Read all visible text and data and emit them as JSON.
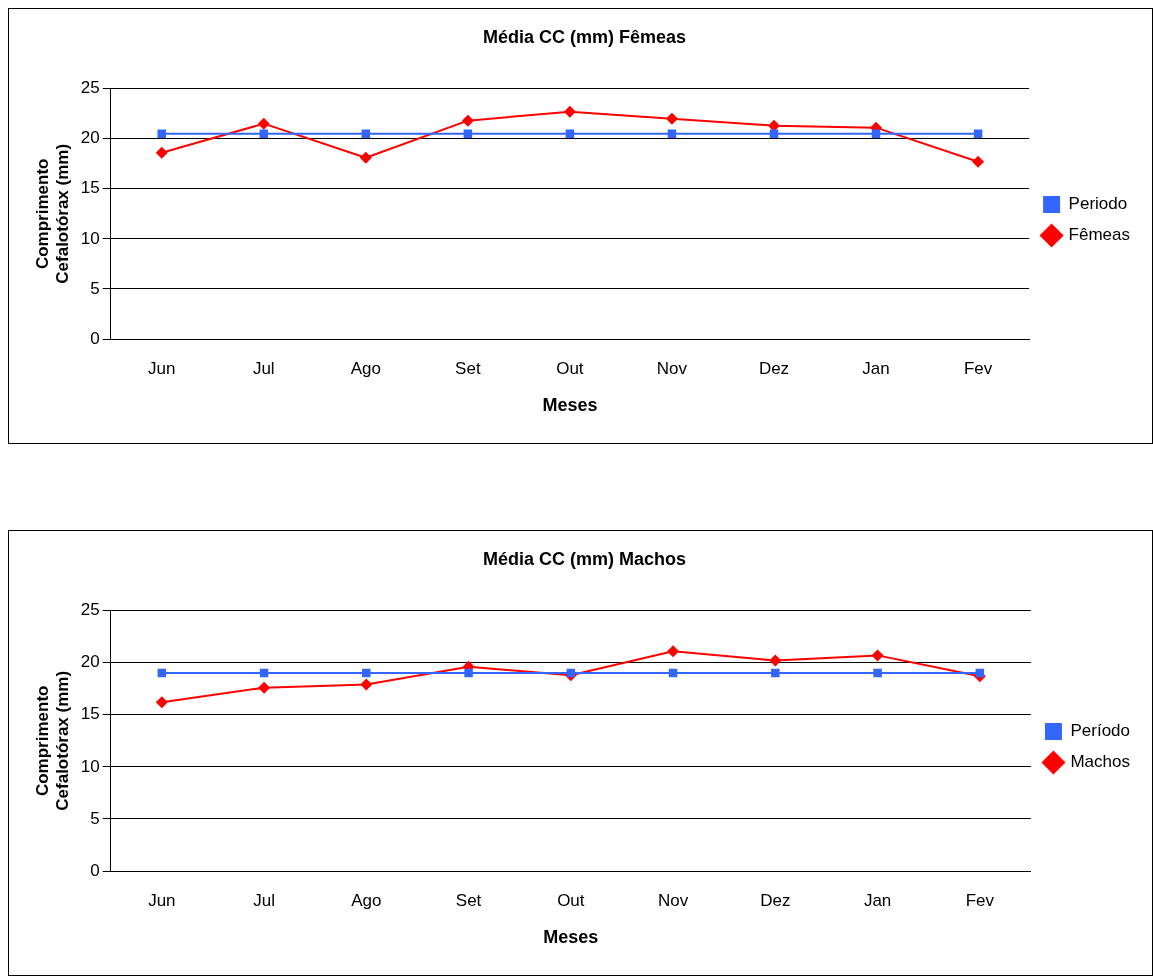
{
  "chart_data": [
    {
      "type": "line",
      "title": "Média CC (mm) Fêmeas",
      "xlabel": "Meses",
      "ylabel": "Comprimento Cefalotórax (mm)",
      "categories": [
        "Jun",
        "Jul",
        "Ago",
        "Set",
        "Out",
        "Nov",
        "Dez",
        "Jan",
        "Fev"
      ],
      "series": [
        {
          "name": "Fêmeas",
          "color": "#ff0000",
          "marker": "diamond",
          "values": [
            18.6,
            21.5,
            18.1,
            21.8,
            22.7,
            22.0,
            21.3,
            21.1,
            17.7
          ]
        },
        {
          "name": "Periodo",
          "color": "#3366ff",
          "marker": "square",
          "values": [
            20.5,
            20.5,
            20.5,
            20.5,
            20.5,
            20.5,
            20.5,
            20.5,
            20.5
          ]
        }
      ],
      "ylim": [
        0,
        25
      ],
      "yticks": [
        0,
        5,
        10,
        15,
        20,
        25
      ],
      "grid": "y",
      "legend": "right",
      "line_style": "solid"
    },
    {
      "type": "line",
      "title": "Média CC (mm) Machos",
      "xlabel": "Meses",
      "ylabel": "Comprimento Cefalotórax (mm)",
      "categories": [
        "Jun",
        "Jul",
        "Ago",
        "Set",
        "Out",
        "Nov",
        "Dez",
        "Jan",
        "Fev"
      ],
      "series": [
        {
          "name": "Machos",
          "color": "#ff0000",
          "marker": "diamond",
          "values": [
            16.2,
            17.6,
            17.9,
            19.6,
            18.8,
            21.1,
            20.2,
            20.7,
            18.7
          ]
        },
        {
          "name": "Período",
          "color": "#3366ff",
          "marker": "square",
          "values": [
            19.0,
            19.0,
            19.0,
            19.0,
            19.0,
            19.0,
            19.0,
            19.0,
            19.0
          ]
        }
      ],
      "ylim": [
        0,
        25
      ],
      "yticks": [
        0,
        5,
        10,
        15,
        20,
        25
      ],
      "grid": "y",
      "legend": "right",
      "line_style": "solid"
    }
  ]
}
